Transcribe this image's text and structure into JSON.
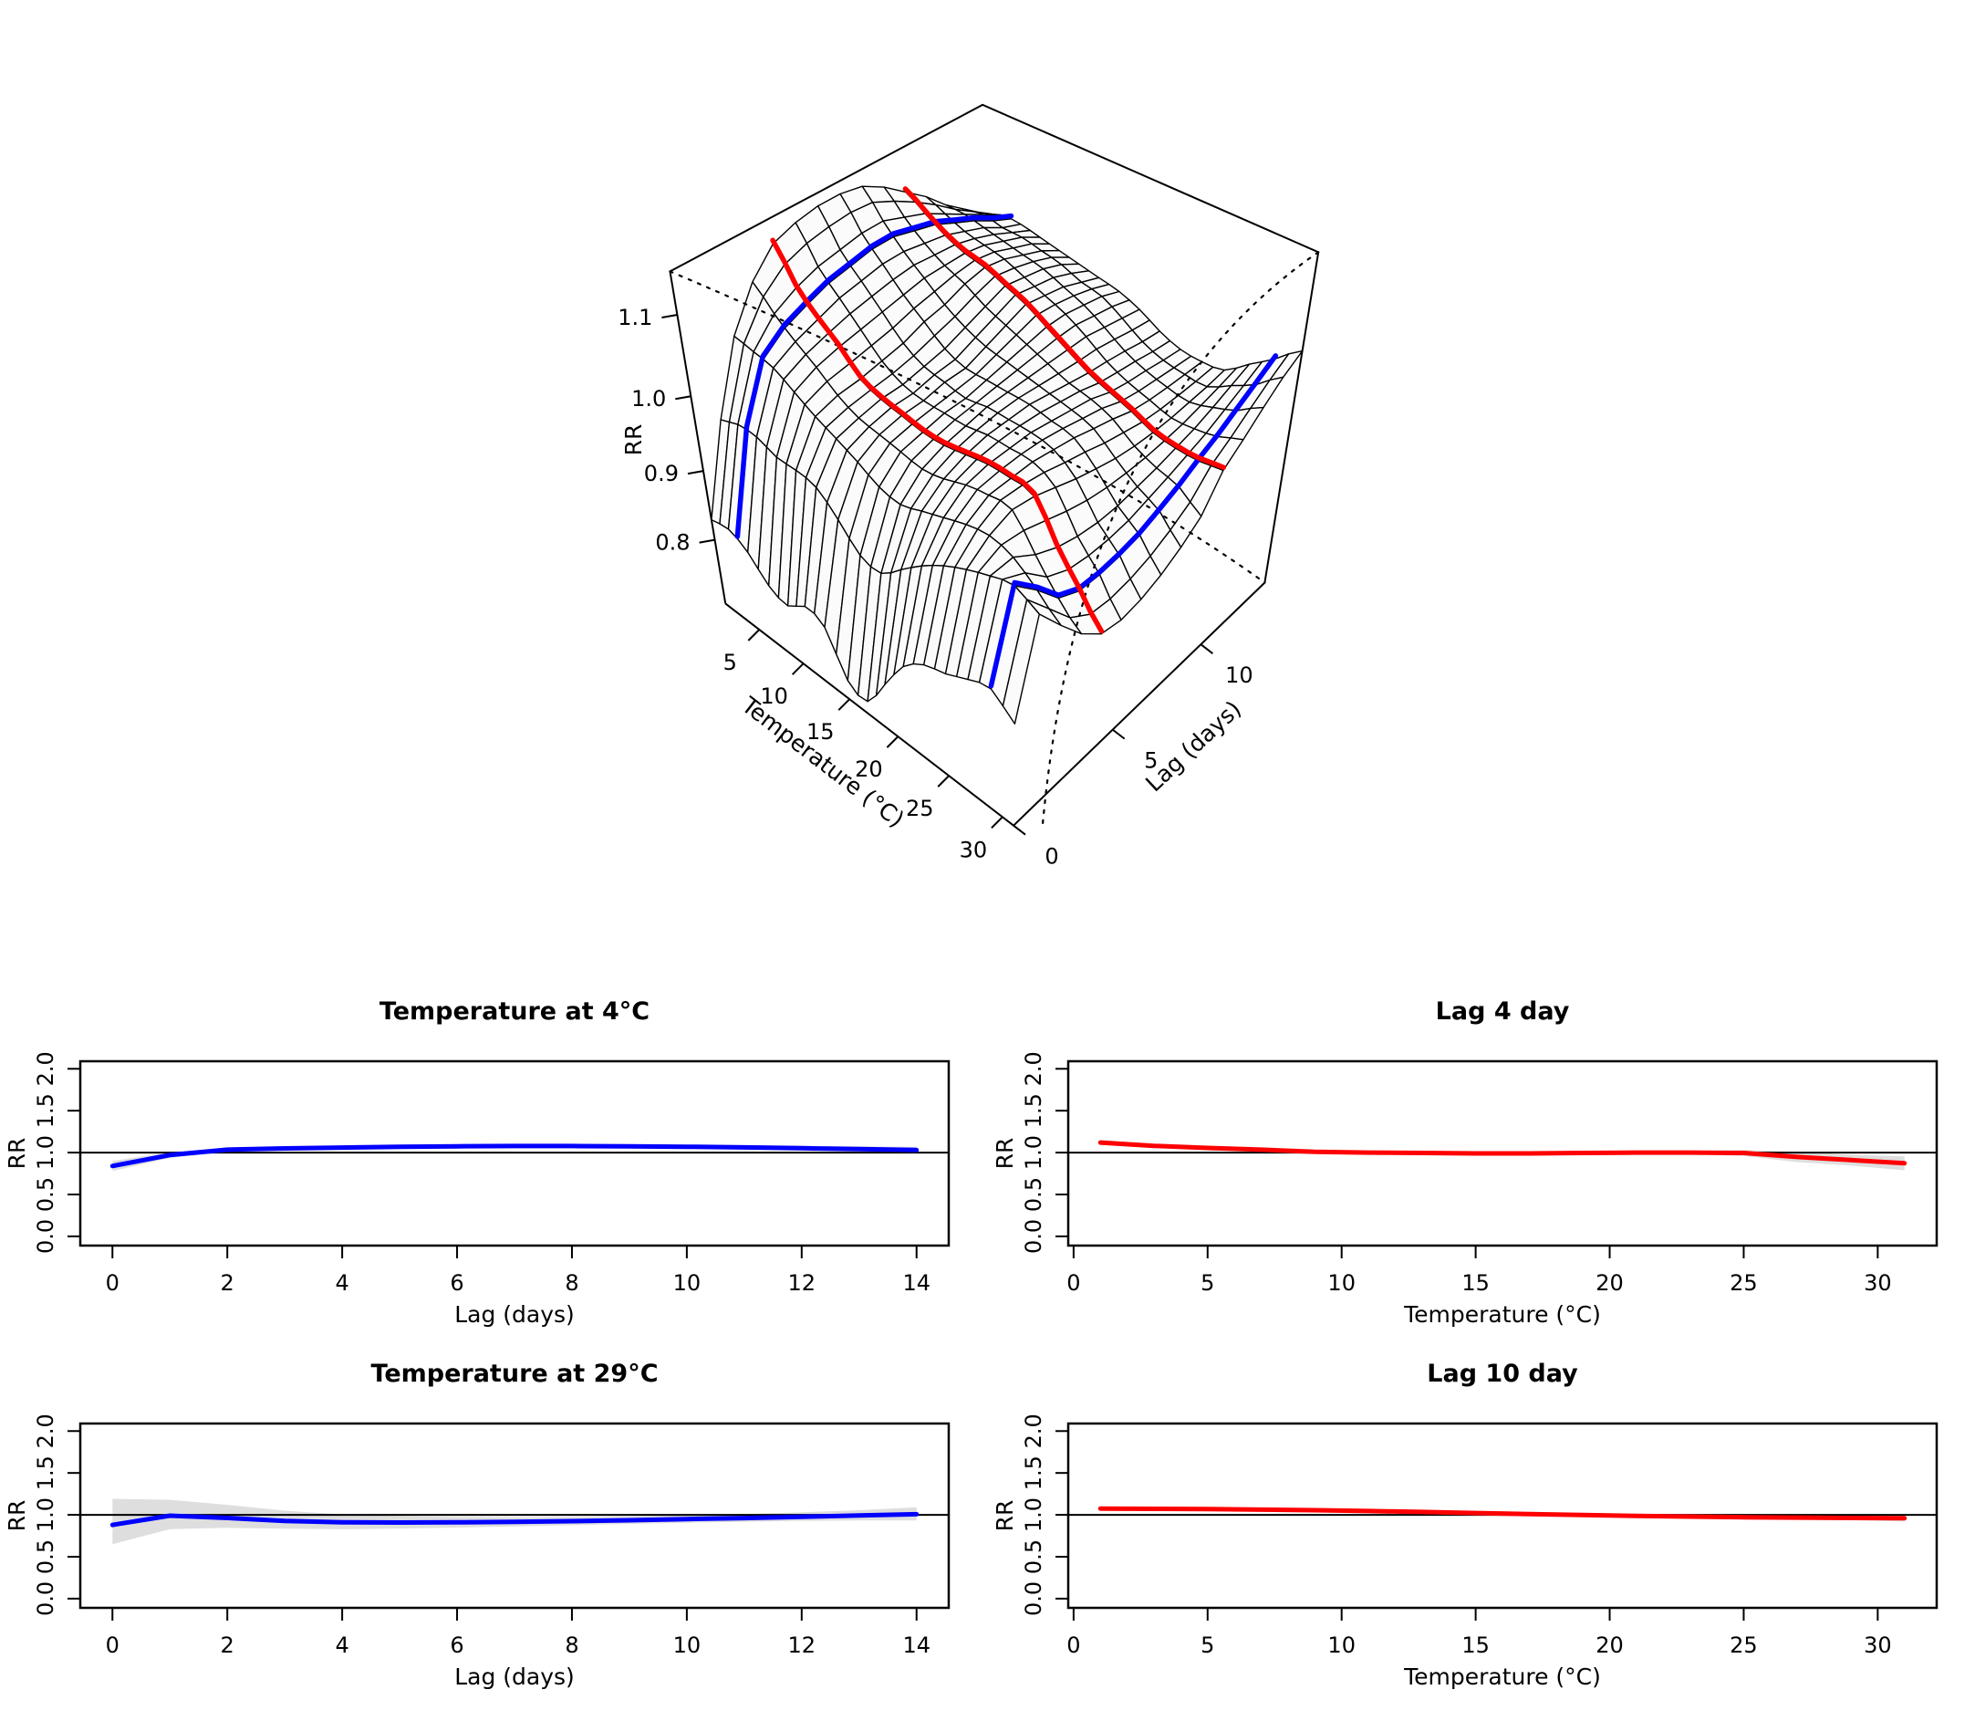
{
  "page": {
    "background": "#ffffff"
  },
  "colors": {
    "blue": "#0000ff",
    "red": "#ff0000",
    "ci_band": "#dedede",
    "axis": "#000000",
    "facet_fill": "#fbfbfb",
    "mesh_stroke": "#000000"
  },
  "chart_data": [
    {
      "id": "exposure-lag-response-surface",
      "type": "surface3d",
      "title": "",
      "xlabel": "Temperature (°C)",
      "ylabel": "Lag (days)",
      "zlabel": "RR",
      "temp_ticks": [
        5,
        10,
        15,
        20,
        25,
        30
      ],
      "lag_ticks": [
        0,
        5,
        10
      ],
      "rr_ticks": [
        0.8,
        0.9,
        1.0,
        1.1
      ],
      "zlim": [
        0.7,
        1.15
      ],
      "temps": [
        1,
        3,
        5,
        7,
        9,
        11,
        13,
        15,
        17,
        19,
        21,
        23,
        25,
        27,
        29,
        31
      ],
      "lags": [
        0,
        1,
        2,
        3,
        4,
        5,
        6,
        7,
        8,
        9,
        10,
        11,
        12,
        13,
        14
      ],
      "rr_grid": [
        [
          0.83,
          0.95,
          1.04,
          1.09,
          1.12,
          1.13,
          1.135,
          1.135,
          1.13,
          1.115,
          1.095,
          1.075,
          1.05,
          1.03,
          1.01
        ],
        [
          0.835,
          0.96,
          1.035,
          1.065,
          1.08,
          1.09,
          1.095,
          1.1,
          1.1,
          1.09,
          1.08,
          1.065,
          1.05,
          1.035,
          1.02
        ],
        [
          0.82,
          0.96,
          1.03,
          1.045,
          1.055,
          1.065,
          1.07,
          1.075,
          1.075,
          1.07,
          1.065,
          1.055,
          1.045,
          1.03,
          1.02
        ],
        [
          0.79,
          0.95,
          1.015,
          1.028,
          1.035,
          1.04,
          1.045,
          1.05,
          1.055,
          1.055,
          1.055,
          1.05,
          1.04,
          1.03,
          1.015
        ],
        [
          0.78,
          0.95,
          1.0,
          1.008,
          1.01,
          1.015,
          1.02,
          1.03,
          1.035,
          1.045,
          1.05,
          1.045,
          1.035,
          1.025,
          1.01
        ],
        [
          0.8,
          0.945,
          0.988,
          0.995,
          1.0,
          1.0,
          1.005,
          1.01,
          1.02,
          1.03,
          1.04,
          1.035,
          1.03,
          1.02,
          1.005
        ],
        [
          0.79,
          0.92,
          0.975,
          0.99,
          0.995,
          0.995,
          1.0,
          1.0,
          1.01,
          1.02,
          1.03,
          1.025,
          1.02,
          1.01,
          1.0
        ],
        [
          0.73,
          0.89,
          0.96,
          0.985,
          0.99,
          0.995,
          0.995,
          1.0,
          1.005,
          1.01,
          1.015,
          1.015,
          1.01,
          1.005,
          0.995
        ],
        [
          0.72,
          0.885,
          0.955,
          0.98,
          0.99,
          0.995,
          1.0,
          1.0,
          1.0,
          1.0,
          1.0,
          1.0,
          0.995,
          0.99,
          0.985
        ],
        [
          0.77,
          0.91,
          0.965,
          0.985,
          0.995,
          1.0,
          1.0,
          1.0,
          0.995,
          0.99,
          0.985,
          0.982,
          0.978,
          0.973,
          0.97
        ],
        [
          0.82,
          0.935,
          0.975,
          0.995,
          1.0,
          1.0,
          1.0,
          0.995,
          0.99,
          0.985,
          0.975,
          0.97,
          0.967,
          0.963,
          0.96
        ],
        [
          0.845,
          0.955,
          0.985,
          1.0,
          1.0,
          1.0,
          0.995,
          0.99,
          0.982,
          0.975,
          0.966,
          0.962,
          0.96,
          0.959,
          0.958
        ],
        [
          0.855,
          0.97,
          0.99,
          1.0,
          0.995,
          0.985,
          0.975,
          0.967,
          0.96,
          0.956,
          0.954,
          0.954,
          0.956,
          0.958,
          0.962
        ],
        [
          0.87,
          0.982,
          0.982,
          0.962,
          0.948,
          0.94,
          0.936,
          0.936,
          0.94,
          0.944,
          0.95,
          0.956,
          0.965,
          0.975,
          0.985
        ],
        [
          0.88,
          0.99,
          0.96,
          0.925,
          0.91,
          0.908,
          0.91,
          0.915,
          0.925,
          0.936,
          0.95,
          0.962,
          0.977,
          0.992,
          1.007
        ],
        [
          0.855,
          0.975,
          0.935,
          0.898,
          0.872,
          0.866,
          0.87,
          0.88,
          0.895,
          0.915,
          0.955,
          0.975,
          0.997,
          1.017,
          1.032
        ]
      ],
      "blue_slice_temps": [
        4,
        29
      ],
      "red_slice_lags": [
        4,
        10
      ]
    },
    {
      "id": "temp-4",
      "type": "line",
      "title": "Temperature at 4°C",
      "xlabel": "Lag (days)",
      "ylabel": "RR",
      "series_color": "blue",
      "x_ticks": [
        0,
        2,
        4,
        6,
        8,
        10,
        12,
        14
      ],
      "y_ticks": [
        "0.0",
        "0.5",
        "1.0",
        "1.5",
        "2.0"
      ],
      "xlim": [
        -0.56,
        14.56
      ],
      "ylim": [
        -0.11,
        2.09
      ],
      "ref_y": 1,
      "x": [
        0,
        1,
        2,
        3,
        4,
        5,
        6,
        7,
        8,
        9,
        10,
        11,
        12,
        13,
        14
      ],
      "y": [
        0.84,
        0.97,
        1.035,
        1.05,
        1.06,
        1.068,
        1.075,
        1.078,
        1.078,
        1.075,
        1.07,
        1.062,
        1.052,
        1.042,
        1.03
      ],
      "ci_upper": [
        0.9,
        1.005,
        1.06,
        1.075,
        1.085,
        1.09,
        1.095,
        1.098,
        1.098,
        1.096,
        1.093,
        1.088,
        1.082,
        1.075,
        1.068
      ],
      "ci_lower": [
        0.78,
        0.935,
        1.01,
        1.025,
        1.035,
        1.045,
        1.055,
        1.058,
        1.058,
        1.054,
        1.047,
        1.036,
        1.022,
        1.009,
        0.992
      ]
    },
    {
      "id": "lag-4",
      "type": "line",
      "title": "Lag 4 day",
      "xlabel": "Temperature (°C)",
      "ylabel": "RR",
      "series_color": "red",
      "x_ticks": [
        0,
        5,
        10,
        15,
        20,
        25,
        30
      ],
      "y_ticks": [
        "0.0",
        "0.5",
        "1.0",
        "1.5",
        "2.0"
      ],
      "xlim": [
        -0.2,
        32.2
      ],
      "ylim": [
        -0.11,
        2.09
      ],
      "ref_y": 1,
      "x": [
        1,
        3,
        5,
        7,
        9,
        11,
        13,
        15,
        17,
        19,
        21,
        23,
        25,
        27,
        29,
        31
      ],
      "y": [
        1.12,
        1.08,
        1.055,
        1.035,
        1.01,
        1.0,
        0.995,
        0.99,
        0.99,
        0.995,
        1.0,
        1.0,
        0.995,
        0.948,
        0.91,
        0.872
      ],
      "ci_upper": [
        1.15,
        1.105,
        1.075,
        1.05,
        1.025,
        1.012,
        1.005,
        1.0,
        1.0,
        1.005,
        1.012,
        1.02,
        1.03,
        1.01,
        0.975,
        0.955
      ],
      "ci_lower": [
        1.09,
        1.055,
        1.035,
        1.02,
        0.995,
        0.988,
        0.985,
        0.98,
        0.98,
        0.985,
        0.988,
        0.98,
        0.96,
        0.886,
        0.845,
        0.789
      ]
    },
    {
      "id": "temp-29",
      "type": "line",
      "title": "Temperature at 29°C",
      "xlabel": "Lag (days)",
      "ylabel": "RR",
      "series_color": "blue",
      "x_ticks": [
        0,
        2,
        4,
        6,
        8,
        10,
        12,
        14
      ],
      "y_ticks": [
        "0.0",
        "0.5",
        "1.0",
        "1.5",
        "2.0"
      ],
      "xlim": [
        -0.56,
        14.56
      ],
      "ylim": [
        -0.11,
        2.09
      ],
      "ref_y": 1,
      "x": [
        0,
        1,
        2,
        3,
        4,
        5,
        6,
        7,
        8,
        9,
        10,
        11,
        12,
        13,
        14
      ],
      "y": [
        0.88,
        0.99,
        0.963,
        0.928,
        0.912,
        0.908,
        0.91,
        0.916,
        0.925,
        0.936,
        0.95,
        0.962,
        0.977,
        0.992,
        1.007
      ],
      "ci_upper": [
        1.19,
        1.18,
        1.12,
        1.05,
        1.005,
        0.985,
        0.975,
        0.972,
        0.975,
        0.982,
        0.995,
        1.01,
        1.03,
        1.055,
        1.09
      ],
      "ci_lower": [
        0.65,
        0.83,
        0.845,
        0.835,
        0.828,
        0.836,
        0.848,
        0.862,
        0.877,
        0.892,
        0.906,
        0.917,
        0.927,
        0.933,
        0.932
      ]
    },
    {
      "id": "lag-10",
      "type": "line",
      "title": "Lag 10 day",
      "xlabel": "Temperature (°C)",
      "ylabel": "RR",
      "series_color": "red",
      "x_ticks": [
        0,
        5,
        10,
        15,
        20,
        25,
        30
      ],
      "y_ticks": [
        "0.0",
        "0.5",
        "1.0",
        "1.5",
        "2.0"
      ],
      "xlim": [
        -0.2,
        32.2
      ],
      "ylim": [
        -0.11,
        2.09
      ],
      "ref_y": 1,
      "x": [
        1,
        3,
        5,
        7,
        9,
        11,
        13,
        15,
        17,
        19,
        21,
        23,
        25,
        27,
        29,
        31
      ],
      "y": [
        1.075,
        1.072,
        1.068,
        1.062,
        1.055,
        1.045,
        1.035,
        1.022,
        1.01,
        0.998,
        0.988,
        0.979,
        0.972,
        0.967,
        0.963,
        0.96
      ],
      "ci_upper": [
        1.09,
        1.085,
        1.08,
        1.075,
        1.068,
        1.058,
        1.048,
        1.035,
        1.022,
        1.01,
        1.0,
        0.993,
        0.988,
        0.986,
        0.988,
        1.0
      ],
      "ci_lower": [
        1.06,
        1.059,
        1.056,
        1.049,
        1.042,
        1.032,
        1.022,
        1.009,
        0.998,
        0.986,
        0.976,
        0.965,
        0.956,
        0.948,
        0.938,
        0.92
      ]
    }
  ]
}
